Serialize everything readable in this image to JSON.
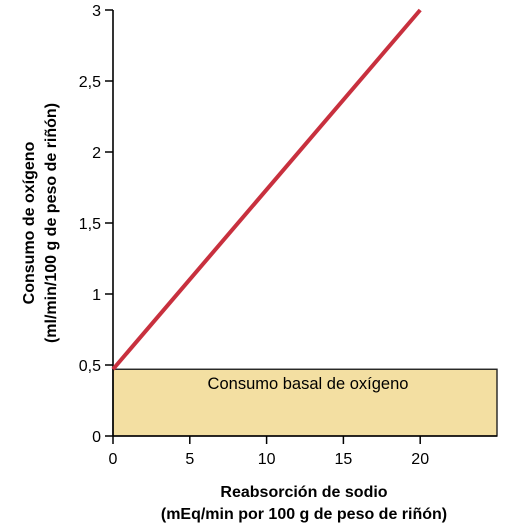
{
  "chart_data": {
    "type": "line",
    "xlabel": [
      "Reabsorción de sodio",
      "(mEq/min por 100 g de peso de riñón)"
    ],
    "ylabel": [
      "Consumo de oxígeno",
      "(ml/min/100 g de peso de riñón)"
    ],
    "xlim": [
      0,
      25
    ],
    "ylim": [
      0,
      3
    ],
    "x_ticks": [
      0,
      5,
      10,
      15,
      20
    ],
    "x_tick_labels": [
      "0",
      "5",
      "10",
      "15",
      "20"
    ],
    "y_ticks": [
      0,
      0.5,
      1,
      1.5,
      2,
      2.5,
      3
    ],
    "y_tick_labels": [
      "0",
      "0,5",
      "1",
      "1,5",
      "2",
      "2,5",
      "3"
    ],
    "grid": false,
    "series": [
      {
        "x": [
          0,
          20
        ],
        "y": [
          0.47,
          3.0
        ],
        "color": "#c8303e"
      }
    ],
    "baseline_region": {
      "y_from": 0,
      "y_to": 0.47,
      "label": "Consumo basal de oxígeno",
      "fill": "#f3dfa2",
      "stroke": "#222222"
    }
  }
}
